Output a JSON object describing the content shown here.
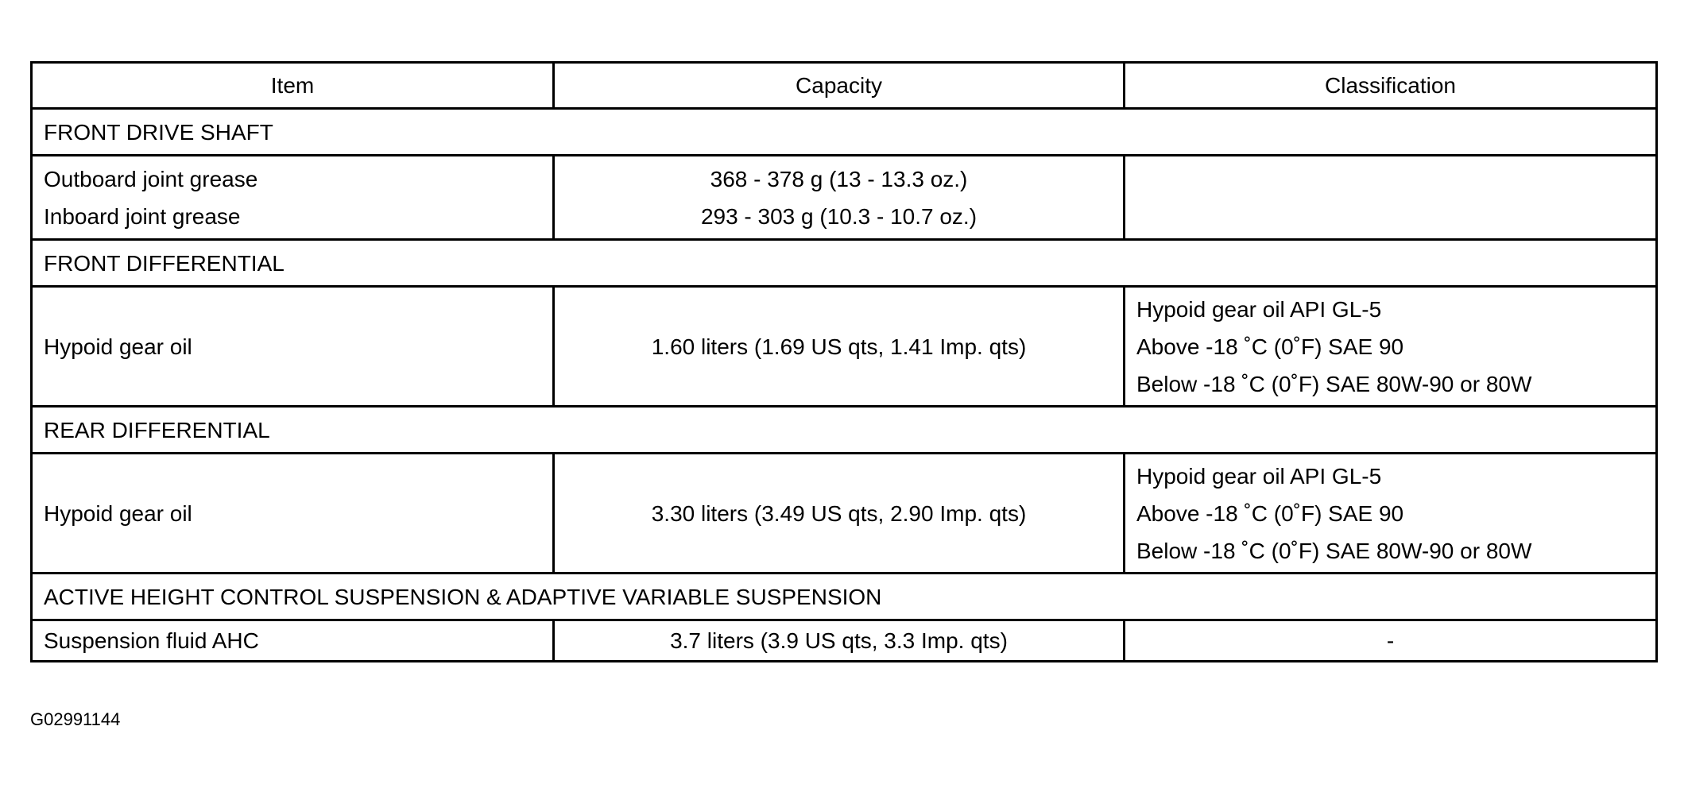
{
  "table": {
    "headers": [
      "Item",
      "Capacity",
      "Classification"
    ],
    "sections": [
      {
        "title": "FRONT DRIVE SHAFT",
        "rows": [
          {
            "item": [
              "Outboard joint grease",
              "Inboard joint grease"
            ],
            "capacity": [
              "368 - 378 g (13 - 13.3 oz.)",
              "293 - 303 g (10.3 - 10.7 oz.)"
            ],
            "classification": []
          }
        ]
      },
      {
        "title": "FRONT DIFFERENTIAL",
        "rows": [
          {
            "item": [
              "Hypoid gear oil"
            ],
            "capacity": [
              "1.60 liters (1.69 US qts, 1.41 Imp. qts)"
            ],
            "classification": [
              "Hypoid gear oil API GL-5",
              "Above -18 ˚C (0˚F) SAE 90",
              "Below -18 ˚C (0˚F) SAE 80W-90 or 80W"
            ]
          }
        ]
      },
      {
        "title": "REAR DIFFERENTIAL",
        "rows": [
          {
            "item": [
              "Hypoid gear oil"
            ],
            "capacity": [
              "3.30 liters (3.49 US qts, 2.90 Imp. qts)"
            ],
            "classification": [
              "Hypoid gear oil API GL-5",
              "Above -18 ˚C (0˚F) SAE 90",
              "Below -18 ˚C (0˚F) SAE 80W-90 or 80W"
            ]
          }
        ]
      },
      {
        "title": "ACTIVE HEIGHT CONTROL SUSPENSION & ADAPTIVE VARIABLE SUSPENSION",
        "rows": [
          {
            "item": [
              "Suspension fluid AHC"
            ],
            "capacity": [
              "3.7 liters (3.9 US qts, 3.3 Imp. qts)"
            ],
            "classification": [
              "-"
            ]
          }
        ]
      }
    ]
  },
  "figure_code": "G02991144"
}
